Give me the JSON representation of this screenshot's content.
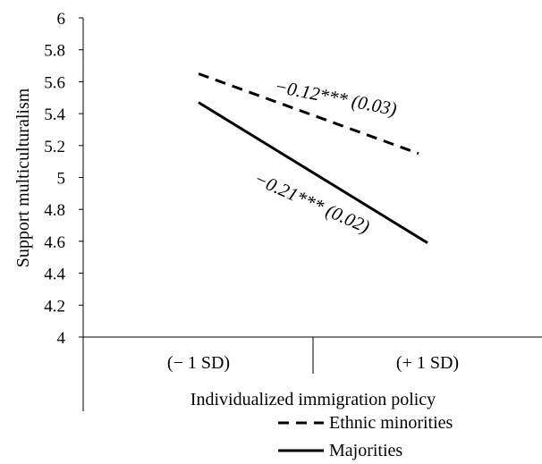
{
  "chart_data": {
    "type": "line",
    "title": "",
    "xlabel": "Individualized immigration policy",
    "ylabel": "Support multiculturalism",
    "ylim": [
      4,
      6
    ],
    "yticks": [
      "4",
      "4.2",
      "4.4",
      "4.6",
      "4.8",
      "5",
      "5.2",
      "5.4",
      "5.6",
      "5.8",
      "6"
    ],
    "categories": [
      "(− 1 SD)",
      "(+ 1 SD)"
    ],
    "grid": false,
    "legend_position": "bottom-right",
    "series": [
      {
        "name": "Ethnic minorities",
        "values": [
          5.65,
          5.15
        ],
        "line_style": "dashed",
        "color": "#000000",
        "annotation": "−0.12*** (0.03)"
      },
      {
        "name": "Majorities",
        "values": [
          5.47,
          4.59
        ],
        "line_style": "solid",
        "color": "#000000",
        "annotation": "−0.21*** (0.02)"
      }
    ]
  }
}
